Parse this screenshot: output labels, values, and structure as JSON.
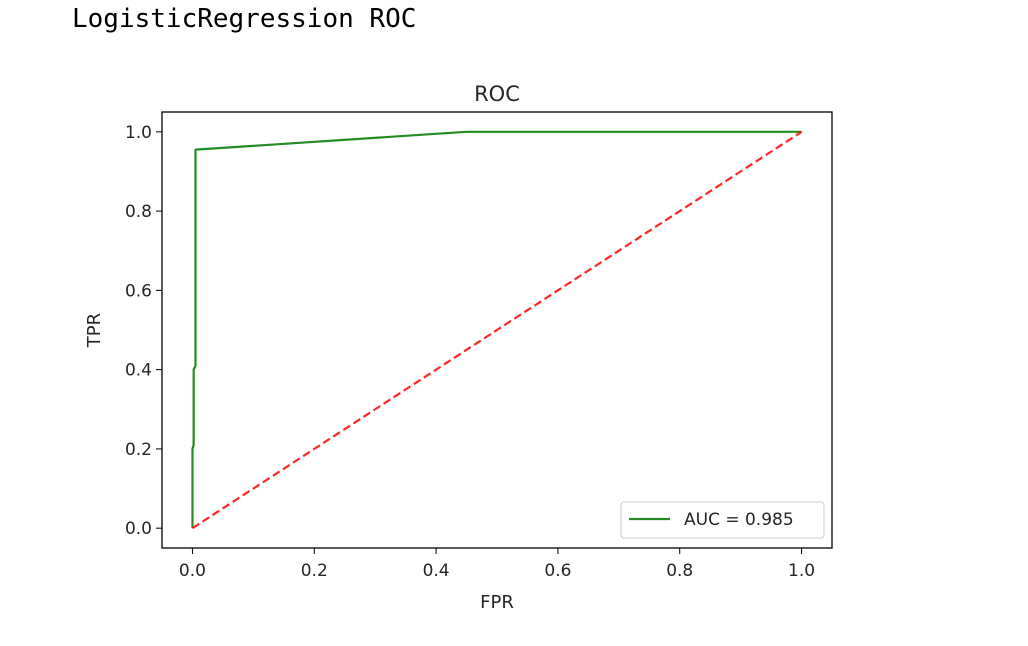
{
  "cell_output": {
    "text": "LogisticRegression ROC"
  },
  "chart_data": {
    "type": "line",
    "title": "ROC",
    "xlabel": "FPR",
    "ylabel": "TPR",
    "xlim": [
      -0.05,
      1.05
    ],
    "ylim": [
      -0.05,
      1.05
    ],
    "xticks": [
      0.0,
      0.2,
      0.4,
      0.6,
      0.8,
      1.0
    ],
    "yticks": [
      0.0,
      0.2,
      0.4,
      0.6,
      0.8,
      1.0
    ],
    "xtick_labels": [
      "0.0",
      "0.2",
      "0.4",
      "0.6",
      "0.8",
      "1.0"
    ],
    "ytick_labels": [
      "0.0",
      "0.2",
      "0.4",
      "0.6",
      "0.8",
      "1.0"
    ],
    "grid": false,
    "legend_position": "lower-right",
    "series": [
      {
        "name": "AUC = 0.985",
        "color": "#228b22",
        "style": "solid",
        "x": [
          0.0,
          0.0,
          0.002,
          0.002,
          0.005,
          0.005,
          0.45,
          1.0
        ],
        "y": [
          0.0,
          0.2,
          0.21,
          0.4,
          0.41,
          0.955,
          1.0,
          1.0
        ]
      },
      {
        "color": "#ff0000",
        "style": "dashed",
        "x": [
          0.0,
          1.0
        ],
        "y": [
          0.0,
          1.0
        ]
      }
    ]
  }
}
